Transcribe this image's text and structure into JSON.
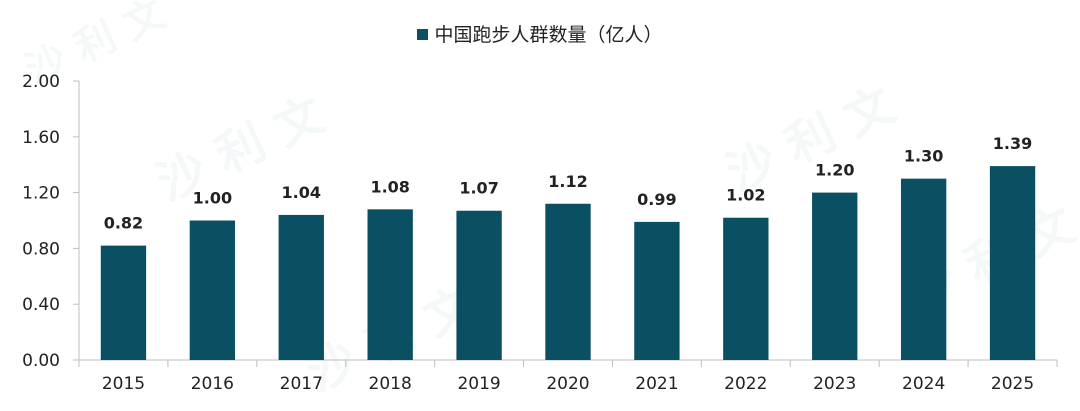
{
  "colors": {
    "bar": "#0b4f63",
    "axis": "#bfbfbf",
    "text": "#222222"
  },
  "watermark": "沙利文",
  "chart_data": {
    "type": "bar",
    "title": "",
    "xlabel": "",
    "ylabel": "",
    "legend_position": "top-center",
    "grid": false,
    "categories": [
      "2015",
      "2016",
      "2017",
      "2018",
      "2019",
      "2020",
      "2021",
      "2022",
      "2023",
      "2024",
      "2025"
    ],
    "series": [
      {
        "name": "中国跑步人群数量（亿人）",
        "values": [
          0.82,
          1.0,
          1.04,
          1.08,
          1.07,
          1.12,
          0.99,
          1.02,
          1.2,
          1.3,
          1.39
        ]
      }
    ],
    "data_labels": [
      "0.82",
      "1.00",
      "1.04",
      "1.08",
      "1.07",
      "1.12",
      "0.99",
      "1.02",
      "1.20",
      "1.30",
      "1.39"
    ],
    "ylim": [
      0,
      2.0
    ],
    "yticks": [
      "0.00",
      "0.40",
      "0.80",
      "1.20",
      "1.60",
      "2.00"
    ]
  }
}
